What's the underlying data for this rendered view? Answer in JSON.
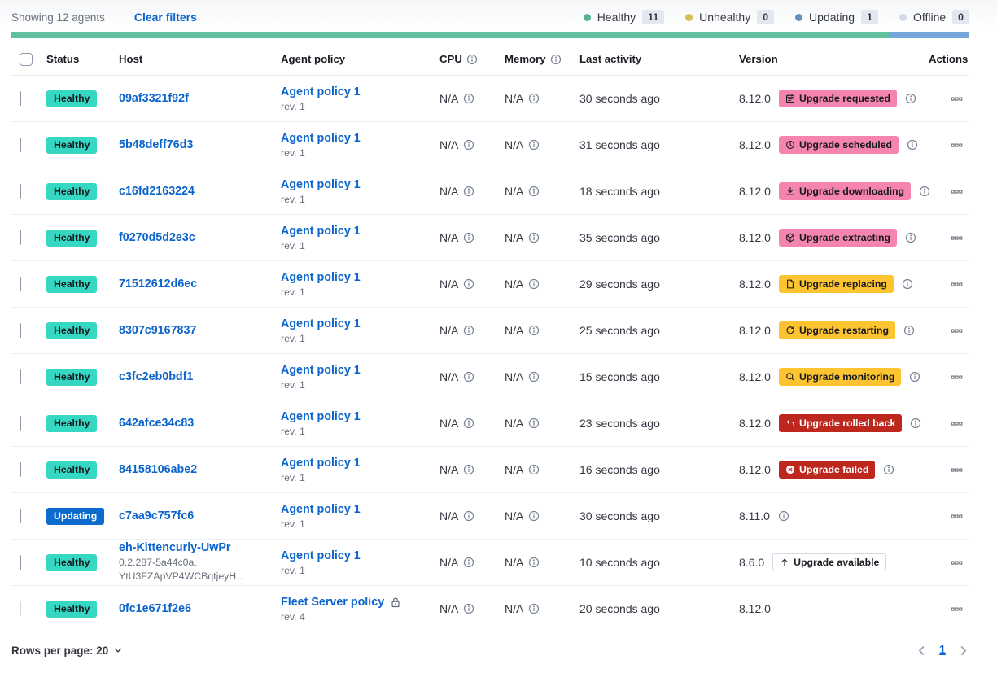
{
  "topbar": {
    "showing": "Showing 12 agents",
    "clear_filters": "Clear filters",
    "legend": [
      {
        "label": "Healthy",
        "count": "11",
        "color": "#54b399"
      },
      {
        "label": "Unhealthy",
        "count": "0",
        "color": "#d6bf57"
      },
      {
        "label": "Updating",
        "count": "1",
        "color": "#6092c0"
      },
      {
        "label": "Offline",
        "count": "0",
        "color": "#d3dae6"
      }
    ],
    "status_bar_segments": [
      {
        "color": "#5fbf9e",
        "percent": 91.7
      },
      {
        "color": "#74a7d8",
        "percent": 8.3
      }
    ]
  },
  "columns": {
    "status": "Status",
    "host": "Host",
    "policy": "Agent policy",
    "cpu": "CPU",
    "memory": "Memory",
    "last_activity": "Last activity",
    "version": "Version",
    "actions": "Actions"
  },
  "rows": [
    {
      "status": "Healthy",
      "status_variant": "healthy",
      "host": "09af3321f92f",
      "policy": "Agent policy 1",
      "rev": "rev. 1",
      "cpu": "N/A",
      "memory": "N/A",
      "last_activity": "30 seconds ago",
      "version": "8.12.0",
      "upgrade": {
        "label": "Upgrade requested",
        "variant": "pink",
        "icon": "calendar-icon"
      },
      "badge_info": true
    },
    {
      "status": "Healthy",
      "status_variant": "healthy",
      "host": "5b48deff76d3",
      "policy": "Agent policy 1",
      "rev": "rev. 1",
      "cpu": "N/A",
      "memory": "N/A",
      "last_activity": "31 seconds ago",
      "version": "8.12.0",
      "upgrade": {
        "label": "Upgrade scheduled",
        "variant": "pink",
        "icon": "clock-icon"
      },
      "badge_info": true
    },
    {
      "status": "Healthy",
      "status_variant": "healthy",
      "host": "c16fd2163224",
      "policy": "Agent policy 1",
      "rev": "rev. 1",
      "cpu": "N/A",
      "memory": "N/A",
      "last_activity": "18 seconds ago",
      "version": "8.12.0",
      "upgrade": {
        "label": "Upgrade downloading",
        "variant": "pink",
        "icon": "download-icon"
      },
      "badge_info": true
    },
    {
      "status": "Healthy",
      "status_variant": "healthy",
      "host": "f0270d5d2e3c",
      "policy": "Agent policy 1",
      "rev": "rev. 1",
      "cpu": "N/A",
      "memory": "N/A",
      "last_activity": "35 seconds ago",
      "version": "8.12.0",
      "upgrade": {
        "label": "Upgrade extracting",
        "variant": "pink",
        "icon": "package-icon"
      },
      "badge_info": true
    },
    {
      "status": "Healthy",
      "status_variant": "healthy",
      "host": "71512612d6ec",
      "policy": "Agent policy 1",
      "rev": "rev. 1",
      "cpu": "N/A",
      "memory": "N/A",
      "last_activity": "29 seconds ago",
      "version": "8.12.0",
      "upgrade": {
        "label": "Upgrade replacing",
        "variant": "yellow",
        "icon": "document-icon"
      },
      "badge_info": true
    },
    {
      "status": "Healthy",
      "status_variant": "healthy",
      "host": "8307c9167837",
      "policy": "Agent policy 1",
      "rev": "rev. 1",
      "cpu": "N/A",
      "memory": "N/A",
      "last_activity": "25 seconds ago",
      "version": "8.12.0",
      "upgrade": {
        "label": "Upgrade restarting",
        "variant": "yellow",
        "icon": "refresh-icon"
      },
      "badge_info": true
    },
    {
      "status": "Healthy",
      "status_variant": "healthy",
      "host": "c3fc2eb0bdf1",
      "policy": "Agent policy 1",
      "rev": "rev. 1",
      "cpu": "N/A",
      "memory": "N/A",
      "last_activity": "15 seconds ago",
      "version": "8.12.0",
      "upgrade": {
        "label": "Upgrade monitoring",
        "variant": "yellow",
        "icon": "inspect-icon"
      },
      "badge_info": true
    },
    {
      "status": "Healthy",
      "status_variant": "healthy",
      "host": "642afce34c83",
      "policy": "Agent policy 1",
      "rev": "rev. 1",
      "cpu": "N/A",
      "memory": "N/A",
      "last_activity": "23 seconds ago",
      "version": "8.12.0",
      "upgrade": {
        "label": "Upgrade rolled back",
        "variant": "red",
        "icon": "return-arrow-icon"
      },
      "badge_info": true
    },
    {
      "status": "Healthy",
      "status_variant": "healthy",
      "host": "84158106abe2",
      "policy": "Agent policy 1",
      "rev": "rev. 1",
      "cpu": "N/A",
      "memory": "N/A",
      "last_activity": "16 seconds ago",
      "version": "8.12.0",
      "upgrade": {
        "label": "Upgrade failed",
        "variant": "red",
        "icon": "error-icon"
      },
      "badge_info": true
    },
    {
      "status": "Updating",
      "status_variant": "updating",
      "host": "c7aa9c757fc6",
      "policy": "Agent policy 1",
      "rev": "rev. 1",
      "cpu": "N/A",
      "memory": "N/A",
      "last_activity": "30 seconds ago",
      "version": "8.11.0",
      "upgrade": null,
      "badge_info": true
    },
    {
      "status": "Healthy",
      "status_variant": "healthy",
      "host": "eh-Kittencurly-UwPr",
      "host_sub_1": "0.2.287-5a44c0a,",
      "host_sub_2": "YtU3FZApVP4WCBqtjeyH...",
      "policy": "Agent policy 1",
      "rev": "rev. 1",
      "cpu": "N/A",
      "memory": "N/A",
      "last_activity": "10 seconds ago",
      "version": "8.6.0",
      "upgrade": {
        "label": "Upgrade available",
        "variant": "hollow",
        "icon": "arrow-up-icon"
      },
      "badge_info": false
    },
    {
      "status": "Healthy",
      "status_variant": "healthy",
      "host": "0fc1e671f2e6",
      "policy": "Fleet Server policy",
      "policy_locked": true,
      "rev": "rev. 4",
      "cpu": "N/A",
      "memory": "N/A",
      "last_activity": "20 seconds ago",
      "version": "8.12.0",
      "upgrade": null,
      "badge_info": false,
      "checkbox_disabled": true
    }
  ],
  "footer": {
    "rows_per_page": "Rows per page: 20",
    "page": "1"
  }
}
